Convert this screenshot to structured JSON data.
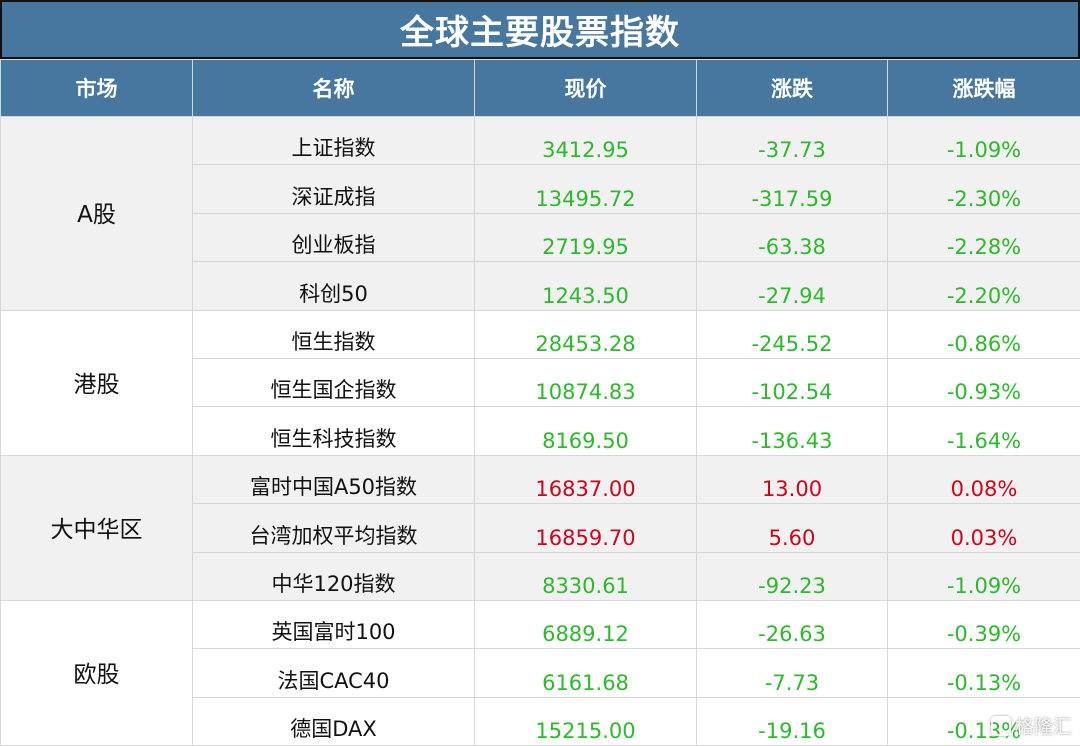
{
  "title": "全球主要股票指数",
  "headers": [
    "市场",
    "名称",
    "现价",
    "涨跌",
    "涨跌幅"
  ],
  "colors": {
    "header_bg": "#47769e",
    "up": "#d0021b",
    "down": "#2eb82e"
  },
  "groups": [
    {
      "market": "A股",
      "rows": [
        {
          "name": "上证指数",
          "price": "3412.95",
          "change": "-37.73",
          "pct": "-1.09%",
          "dir": "down"
        },
        {
          "name": "深证成指",
          "price": "13495.72",
          "change": "-317.59",
          "pct": "-2.30%",
          "dir": "down"
        },
        {
          "name": "创业板指",
          "price": "2719.95",
          "change": "-63.38",
          "pct": "-2.28%",
          "dir": "down"
        },
        {
          "name": "科创50",
          "price": "1243.50",
          "change": "-27.94",
          "pct": "-2.20%",
          "dir": "down"
        }
      ]
    },
    {
      "market": "港股",
      "rows": [
        {
          "name": "恒生指数",
          "price": "28453.28",
          "change": "-245.52",
          "pct": "-0.86%",
          "dir": "down"
        },
        {
          "name": "恒生国企指数",
          "price": "10874.83",
          "change": "-102.54",
          "pct": "-0.93%",
          "dir": "down"
        },
        {
          "name": "恒生科技指数",
          "price": "8169.50",
          "change": "-136.43",
          "pct": "-1.64%",
          "dir": "down"
        }
      ]
    },
    {
      "market": "大中华区",
      "rows": [
        {
          "name": "富时中国A50指数",
          "price": "16837.00",
          "change": "13.00",
          "pct": "0.08%",
          "dir": "up"
        },
        {
          "name": "台湾加权平均指数",
          "price": "16859.70",
          "change": "5.60",
          "pct": "0.03%",
          "dir": "up"
        },
        {
          "name": "中华120指数",
          "price": "8330.61",
          "change": "-92.23",
          "pct": "-1.09%",
          "dir": "down"
        }
      ]
    },
    {
      "market": "欧股",
      "rows": [
        {
          "name": "英国富时100",
          "price": "6889.12",
          "change": "-26.63",
          "pct": "-0.39%",
          "dir": "down"
        },
        {
          "name": "法国CAC40",
          "price": "6161.68",
          "change": "-7.73",
          "pct": "-0.13%",
          "dir": "down"
        },
        {
          "name": "德国DAX",
          "price": "15215.00",
          "change": "-19.16",
          "pct": "-0.13%",
          "dir": "down"
        }
      ]
    }
  ],
  "watermark": "格隆汇"
}
